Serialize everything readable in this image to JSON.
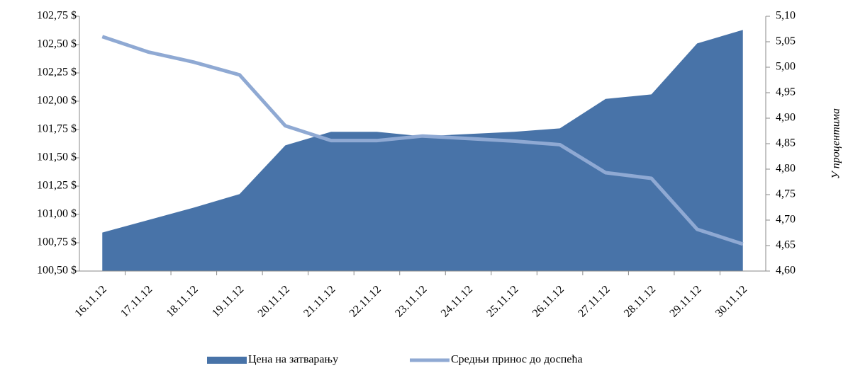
{
  "chart_data": {
    "type": "area_line",
    "categories": [
      "16.11.12",
      "17.11.12",
      "18.11.12",
      "19.11.12",
      "20.11.12",
      "21.11.12",
      "22.11.12",
      "23.11.12",
      "24.11.12",
      "25.11.12",
      "26.11.12",
      "27.11.12",
      "28.11.12",
      "29.11.12",
      "30.11.12"
    ],
    "series": [
      {
        "name": "Цена на затварању",
        "type": "area",
        "color": "#4873a8",
        "axis": "y",
        "values": [
          100.84,
          100.95,
          101.06,
          101.18,
          101.61,
          101.73,
          101.73,
          101.69,
          101.71,
          101.73,
          101.76,
          102.02,
          102.06,
          102.51,
          102.63
        ]
      },
      {
        "name": "Средњи принос до доспећа",
        "type": "line",
        "color": "#8fa9d3",
        "axis": "y2",
        "values": [
          5.06,
          5.03,
          5.01,
          4.985,
          4.885,
          4.856,
          4.856,
          4.865,
          4.86,
          4.855,
          4.848,
          4.793,
          4.782,
          4.682,
          4.653
        ]
      }
    ],
    "ylim": [
      100.5,
      102.75
    ],
    "yticks": [
      {
        "value": 100.5,
        "label": "100,50 $"
      },
      {
        "value": 100.75,
        "label": "100,75 $"
      },
      {
        "value": 101,
        "label": "101,00 $"
      },
      {
        "value": 101.25,
        "label": "101,25 $"
      },
      {
        "value": 101.5,
        "label": "101,50 $"
      },
      {
        "value": 101.75,
        "label": "101,75 $"
      },
      {
        "value": 102,
        "label": "102,00 $"
      },
      {
        "value": 102.25,
        "label": "102,25 $"
      },
      {
        "value": 102.5,
        "label": "102,50 $"
      },
      {
        "value": 102.75,
        "label": "102,75 $"
      }
    ],
    "y2lim": [
      4.6,
      5.1
    ],
    "y2ticks": [
      {
        "value": 4.6,
        "label": "4,60"
      },
      {
        "value": 4.65,
        "label": "4,65"
      },
      {
        "value": 4.7,
        "label": "4,70"
      },
      {
        "value": 4.75,
        "label": "4,75"
      },
      {
        "value": 4.8,
        "label": "4,80"
      },
      {
        "value": 4.85,
        "label": "4,85"
      },
      {
        "value": 4.9,
        "label": "4,90"
      },
      {
        "value": 4.95,
        "label": "4,95"
      },
      {
        "value": 5.0,
        "label": "5,00"
      },
      {
        "value": 5.05,
        "label": "5,05"
      },
      {
        "value": 5.1,
        "label": "5,10"
      }
    ],
    "y2_label": "У процентима",
    "legend": "bottom"
  }
}
